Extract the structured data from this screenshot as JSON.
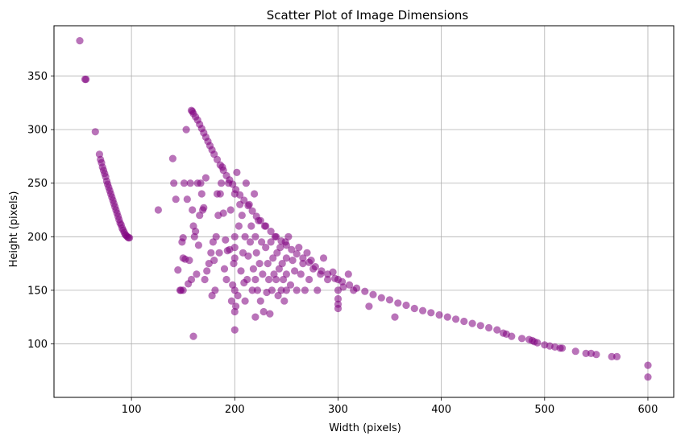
{
  "chart_data": {
    "type": "scatter",
    "title": "Scatter Plot of Image Dimensions",
    "xlabel": "Width (pixels)",
    "ylabel": "Height (pixels)",
    "xlim": [
      25,
      625
    ],
    "ylim": [
      50,
      397
    ],
    "xticks": [
      100,
      200,
      300,
      400,
      500,
      600
    ],
    "yticks": [
      100,
      150,
      200,
      250,
      300,
      350
    ],
    "grid": true,
    "color": "#800080",
    "opacity": 0.55,
    "series": [
      {
        "points": [
          [
            50,
            383
          ],
          [
            55,
            347
          ],
          [
            56,
            347
          ],
          [
            65,
            298
          ],
          [
            69,
            277
          ],
          [
            70,
            272
          ],
          [
            71,
            269
          ],
          [
            72,
            265
          ],
          [
            73,
            262
          ],
          [
            74,
            259
          ],
          [
            75,
            256
          ],
          [
            76,
            252
          ],
          [
            77,
            249
          ],
          [
            78,
            246
          ],
          [
            79,
            243
          ],
          [
            80,
            240
          ],
          [
            81,
            237
          ],
          [
            82,
            234
          ],
          [
            83,
            231
          ],
          [
            84,
            228
          ],
          [
            85,
            225
          ],
          [
            86,
            222
          ],
          [
            87,
            219
          ],
          [
            88,
            216
          ],
          [
            89,
            213
          ],
          [
            90,
            211
          ],
          [
            91,
            208
          ],
          [
            92,
            206
          ],
          [
            93,
            204
          ],
          [
            94,
            202
          ],
          [
            95,
            201
          ],
          [
            96,
            200
          ],
          [
            97,
            199
          ],
          [
            98,
            199
          ],
          [
            158,
            318
          ],
          [
            159,
            317
          ],
          [
            160,
            315
          ],
          [
            162,
            312
          ],
          [
            164,
            309
          ],
          [
            166,
            305
          ],
          [
            168,
            301
          ],
          [
            170,
            297
          ],
          [
            172,
            293
          ],
          [
            174,
            289
          ],
          [
            176,
            285
          ],
          [
            178,
            281
          ],
          [
            180,
            277
          ],
          [
            183,
            272
          ],
          [
            186,
            267
          ],
          [
            189,
            262
          ],
          [
            192,
            257
          ],
          [
            195,
            253
          ],
          [
            198,
            249
          ],
          [
            201,
            244
          ],
          [
            205,
            239
          ],
          [
            209,
            234
          ],
          [
            213,
            229
          ],
          [
            217,
            224
          ],
          [
            221,
            219
          ],
          [
            225,
            215
          ],
          [
            230,
            210
          ],
          [
            235,
            205
          ],
          [
            240,
            200
          ],
          [
            245,
            196
          ],
          [
            250,
            192
          ],
          [
            255,
            188
          ],
          [
            260,
            184
          ],
          [
            266,
            180
          ],
          [
            272,
            176
          ],
          [
            278,
            172
          ],
          [
            284,
            168
          ],
          [
            290,
            165
          ],
          [
            297,
            161
          ],
          [
            304,
            158
          ],
          [
            311,
            155
          ],
          [
            318,
            152
          ],
          [
            326,
            149
          ],
          [
            334,
            146
          ],
          [
            342,
            143
          ],
          [
            350,
            141
          ],
          [
            358,
            138
          ],
          [
            366,
            136
          ],
          [
            374,
            133
          ],
          [
            382,
            131
          ],
          [
            390,
            129
          ],
          [
            398,
            127
          ],
          [
            406,
            125
          ],
          [
            414,
            123
          ],
          [
            422,
            121
          ],
          [
            430,
            119
          ],
          [
            438,
            117
          ],
          [
            446,
            115
          ],
          [
            454,
            113
          ],
          [
            460,
            110
          ],
          [
            463,
            109
          ],
          [
            468,
            107
          ],
          [
            478,
            105
          ],
          [
            485,
            104
          ],
          [
            488,
            103
          ],
          [
            490,
            102
          ],
          [
            493,
            101
          ],
          [
            500,
            99
          ],
          [
            505,
            98
          ],
          [
            510,
            97
          ],
          [
            515,
            96
          ],
          [
            517,
            96
          ],
          [
            530,
            93
          ],
          [
            540,
            91
          ],
          [
            545,
            91
          ],
          [
            550,
            90
          ],
          [
            565,
            88
          ],
          [
            570,
            88
          ],
          [
            600,
            80
          ],
          [
            600,
            69
          ],
          [
            126,
            225
          ],
          [
            140,
            273
          ],
          [
            141,
            250
          ],
          [
            143,
            235
          ],
          [
            145,
            169
          ],
          [
            147,
            150
          ],
          [
            148,
            150
          ],
          [
            149,
            195
          ],
          [
            150,
            199
          ],
          [
            150,
            180
          ],
          [
            150,
            150
          ],
          [
            151,
            250
          ],
          [
            152,
            179
          ],
          [
            153,
            300
          ],
          [
            154,
            235
          ],
          [
            155,
            156
          ],
          [
            156,
            178
          ],
          [
            157,
            250
          ],
          [
            158,
            160
          ],
          [
            159,
            225
          ],
          [
            160,
            107
          ],
          [
            160,
            210
          ],
          [
            161,
            200
          ],
          [
            162,
            205
          ],
          [
            163,
            165
          ],
          [
            164,
            250
          ],
          [
            165,
            192
          ],
          [
            166,
            220
          ],
          [
            167,
            250
          ],
          [
            168,
            240
          ],
          [
            169,
            225
          ],
          [
            170,
            227
          ],
          [
            171,
            160
          ],
          [
            172,
            255
          ],
          [
            173,
            168
          ],
          [
            175,
            175
          ],
          [
            177,
            185
          ],
          [
            178,
            145
          ],
          [
            179,
            195
          ],
          [
            180,
            178
          ],
          [
            181,
            150
          ],
          [
            182,
            200
          ],
          [
            183,
            240
          ],
          [
            184,
            220
          ],
          [
            185,
            185
          ],
          [
            186,
            240
          ],
          [
            187,
            250
          ],
          [
            188,
            265
          ],
          [
            189,
            222
          ],
          [
            190,
            170
          ],
          [
            191,
            197
          ],
          [
            192,
            160
          ],
          [
            193,
            187
          ],
          [
            194,
            250
          ],
          [
            195,
            188
          ],
          [
            196,
            225
          ],
          [
            197,
            140
          ],
          [
            198,
            155
          ],
          [
            199,
            175
          ],
          [
            200,
            113
          ],
          [
            200,
            130
          ],
          [
            200,
            150
          ],
          [
            200,
            180
          ],
          [
            200,
            190
          ],
          [
            200,
            200
          ],
          [
            200,
            240
          ],
          [
            201,
            135
          ],
          [
            202,
            260
          ],
          [
            203,
            145
          ],
          [
            204,
            210
          ],
          [
            205,
            230
          ],
          [
            206,
            168
          ],
          [
            207,
            220
          ],
          [
            208,
            185
          ],
          [
            209,
            157
          ],
          [
            210,
            140
          ],
          [
            210,
            200
          ],
          [
            211,
            250
          ],
          [
            212,
            160
          ],
          [
            213,
            182
          ],
          [
            214,
            230
          ],
          [
            215,
            195
          ],
          [
            216,
            210
          ],
          [
            217,
            150
          ],
          [
            218,
            170
          ],
          [
            219,
            240
          ],
          [
            220,
            125
          ],
          [
            220,
            160
          ],
          [
            220,
            200
          ],
          [
            221,
            185
          ],
          [
            222,
            150
          ],
          [
            223,
            215
          ],
          [
            224,
            175
          ],
          [
            225,
            140
          ],
          [
            226,
            195
          ],
          [
            227,
            165
          ],
          [
            228,
            130
          ],
          [
            229,
            210
          ],
          [
            230,
            190
          ],
          [
            231,
            148
          ],
          [
            232,
            175
          ],
          [
            233,
            160
          ],
          [
            234,
            128
          ],
          [
            235,
            195
          ],
          [
            236,
            150
          ],
          [
            237,
            180
          ],
          [
            238,
            165
          ],
          [
            239,
            200
          ],
          [
            240,
            160
          ],
          [
            241,
            185
          ],
          [
            242,
            145
          ],
          [
            243,
            170
          ],
          [
            244,
            190
          ],
          [
            245,
            150
          ],
          [
            246,
            175
          ],
          [
            247,
            160
          ],
          [
            248,
            140
          ],
          [
            249,
            195
          ],
          [
            250,
            165
          ],
          [
            250,
            150
          ],
          [
            250,
            180
          ],
          [
            252,
            200
          ],
          [
            254,
            155
          ],
          [
            256,
            178
          ],
          [
            258,
            168
          ],
          [
            260,
            150
          ],
          [
            262,
            190
          ],
          [
            264,
            165
          ],
          [
            266,
            175
          ],
          [
            268,
            150
          ],
          [
            270,
            185
          ],
          [
            272,
            160
          ],
          [
            274,
            178
          ],
          [
            276,
            170
          ],
          [
            280,
            150
          ],
          [
            283,
            165
          ],
          [
            286,
            180
          ],
          [
            290,
            160
          ],
          [
            295,
            167
          ],
          [
            300,
            133
          ],
          [
            300,
            137
          ],
          [
            300,
            142
          ],
          [
            300,
            150
          ],
          [
            300,
            160
          ],
          [
            305,
            153
          ],
          [
            310,
            165
          ],
          [
            315,
            150
          ],
          [
            330,
            135
          ],
          [
            355,
            125
          ]
        ]
      }
    ]
  }
}
